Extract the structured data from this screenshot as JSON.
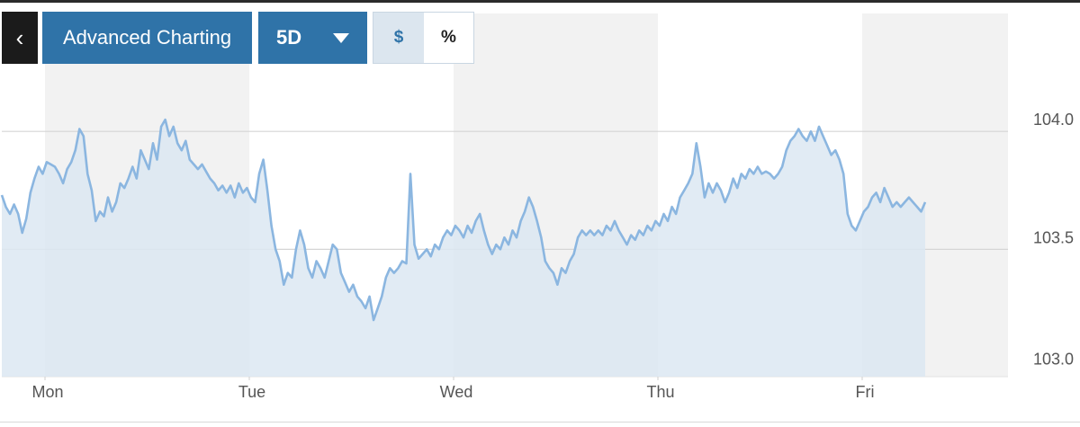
{
  "toolbar": {
    "back_glyph": "‹",
    "chart_label": "Advanced Charting",
    "range_label": "5D",
    "currency_label": "$",
    "percent_label": "%"
  },
  "icons": {
    "back": "chevron-left-icon",
    "range_dropdown": "caret-down-icon"
  },
  "colors": {
    "accent": "#2f73a8",
    "line": "#8bb6e0",
    "area": "#dce8f2",
    "band": "#f2f2f2",
    "dark_button": "#1b1b1b"
  },
  "chart_data": {
    "type": "area",
    "title": "",
    "xlabel": "",
    "ylabel": "",
    "ylim": [
      102.96,
      104.5
    ],
    "y_ticks": [
      {
        "value": 104.0,
        "label": "104.0"
      },
      {
        "value": 103.5,
        "label": "103.5"
      },
      {
        "value": 103.0,
        "label": "103.0"
      }
    ],
    "x_ticks": [
      "Mon",
      "Tue",
      "Wed",
      "Thu",
      "Fri"
    ],
    "x_range": [
      0,
      4.8
    ],
    "shaded_days": [
      0,
      2,
      4
    ],
    "grid": {
      "horizontal": true,
      "vertical": false
    },
    "series": [
      {
        "points": [
          [
            0.0,
            103.73
          ],
          [
            0.02,
            103.68
          ],
          [
            0.04,
            103.65
          ],
          [
            0.06,
            103.69
          ],
          [
            0.08,
            103.65
          ],
          [
            0.1,
            103.57
          ],
          [
            0.12,
            103.63
          ],
          [
            0.14,
            103.74
          ],
          [
            0.16,
            103.8
          ],
          [
            0.18,
            103.85
          ],
          [
            0.2,
            103.82
          ],
          [
            0.22,
            103.87
          ],
          [
            0.24,
            103.86
          ],
          [
            0.26,
            103.85
          ],
          [
            0.28,
            103.82
          ],
          [
            0.3,
            103.78
          ],
          [
            0.32,
            103.84
          ],
          [
            0.34,
            103.87
          ],
          [
            0.36,
            103.92
          ],
          [
            0.38,
            104.01
          ],
          [
            0.4,
            103.98
          ],
          [
            0.42,
            103.82
          ],
          [
            0.44,
            103.75
          ],
          [
            0.46,
            103.62
          ],
          [
            0.48,
            103.66
          ],
          [
            0.5,
            103.64
          ],
          [
            0.52,
            103.72
          ],
          [
            0.54,
            103.66
          ],
          [
            0.56,
            103.7
          ],
          [
            0.58,
            103.78
          ],
          [
            0.6,
            103.76
          ],
          [
            0.62,
            103.8
          ],
          [
            0.64,
            103.85
          ],
          [
            0.66,
            103.8
          ],
          [
            0.68,
            103.92
          ],
          [
            0.7,
            103.88
          ],
          [
            0.72,
            103.84
          ],
          [
            0.74,
            103.95
          ],
          [
            0.76,
            103.88
          ],
          [
            0.78,
            104.02
          ],
          [
            0.8,
            104.05
          ],
          [
            0.82,
            103.98
          ],
          [
            0.84,
            104.02
          ],
          [
            0.86,
            103.95
          ],
          [
            0.88,
            103.92
          ],
          [
            0.9,
            103.96
          ],
          [
            0.92,
            103.88
          ],
          [
            0.94,
            103.86
          ],
          [
            0.96,
            103.84
          ],
          [
            0.98,
            103.86
          ],
          [
            1.0,
            103.83
          ],
          [
            1.02,
            103.8
          ],
          [
            1.04,
            103.78
          ],
          [
            1.06,
            103.75
          ],
          [
            1.08,
            103.77
          ],
          [
            1.1,
            103.74
          ],
          [
            1.12,
            103.77
          ],
          [
            1.14,
            103.72
          ],
          [
            1.16,
            103.78
          ],
          [
            1.18,
            103.74
          ],
          [
            1.2,
            103.76
          ],
          [
            1.22,
            103.72
          ],
          [
            1.24,
            103.7
          ],
          [
            1.26,
            103.82
          ],
          [
            1.28,
            103.88
          ],
          [
            1.3,
            103.75
          ],
          [
            1.32,
            103.6
          ],
          [
            1.34,
            103.5
          ],
          [
            1.36,
            103.45
          ],
          [
            1.38,
            103.35
          ],
          [
            1.4,
            103.4
          ],
          [
            1.42,
            103.38
          ],
          [
            1.44,
            103.5
          ],
          [
            1.46,
            103.58
          ],
          [
            1.48,
            103.52
          ],
          [
            1.5,
            103.42
          ],
          [
            1.52,
            103.38
          ],
          [
            1.54,
            103.45
          ],
          [
            1.56,
            103.42
          ],
          [
            1.58,
            103.38
          ],
          [
            1.6,
            103.45
          ],
          [
            1.62,
            103.52
          ],
          [
            1.64,
            103.5
          ],
          [
            1.66,
            103.4
          ],
          [
            1.68,
            103.36
          ],
          [
            1.7,
            103.32
          ],
          [
            1.72,
            103.35
          ],
          [
            1.74,
            103.3
          ],
          [
            1.76,
            103.28
          ],
          [
            1.78,
            103.25
          ],
          [
            1.8,
            103.3
          ],
          [
            1.82,
            103.2
          ],
          [
            1.84,
            103.25
          ],
          [
            1.86,
            103.3
          ],
          [
            1.88,
            103.38
          ],
          [
            1.9,
            103.42
          ],
          [
            1.92,
            103.4
          ],
          [
            1.94,
            103.42
          ],
          [
            1.96,
            103.45
          ],
          [
            1.98,
            103.44
          ],
          [
            2.0,
            103.82
          ],
          [
            2.02,
            103.52
          ],
          [
            2.04,
            103.46
          ],
          [
            2.06,
            103.48
          ],
          [
            2.08,
            103.5
          ],
          [
            2.1,
            103.47
          ],
          [
            2.12,
            103.52
          ],
          [
            2.14,
            103.5
          ],
          [
            2.16,
            103.55
          ],
          [
            2.18,
            103.58
          ],
          [
            2.2,
            103.56
          ],
          [
            2.22,
            103.6
          ],
          [
            2.24,
            103.58
          ],
          [
            2.26,
            103.55
          ],
          [
            2.28,
            103.6
          ],
          [
            2.3,
            103.57
          ],
          [
            2.32,
            103.62
          ],
          [
            2.34,
            103.65
          ],
          [
            2.36,
            103.58
          ],
          [
            2.38,
            103.52
          ],
          [
            2.4,
            103.48
          ],
          [
            2.42,
            103.52
          ],
          [
            2.44,
            103.5
          ],
          [
            2.46,
            103.55
          ],
          [
            2.48,
            103.52
          ],
          [
            2.5,
            103.58
          ],
          [
            2.52,
            103.55
          ],
          [
            2.54,
            103.62
          ],
          [
            2.56,
            103.66
          ],
          [
            2.58,
            103.72
          ],
          [
            2.6,
            103.68
          ],
          [
            2.62,
            103.62
          ],
          [
            2.64,
            103.55
          ],
          [
            2.66,
            103.45
          ],
          [
            2.68,
            103.42
          ],
          [
            2.7,
            103.4
          ],
          [
            2.72,
            103.35
          ],
          [
            2.74,
            103.42
          ],
          [
            2.76,
            103.4
          ],
          [
            2.78,
            103.45
          ],
          [
            2.8,
            103.48
          ],
          [
            2.82,
            103.55
          ],
          [
            2.84,
            103.58
          ],
          [
            2.86,
            103.56
          ],
          [
            2.88,
            103.58
          ],
          [
            2.9,
            103.56
          ],
          [
            2.92,
            103.58
          ],
          [
            2.94,
            103.56
          ],
          [
            2.96,
            103.6
          ],
          [
            2.98,
            103.58
          ],
          [
            3.0,
            103.62
          ],
          [
            3.02,
            103.58
          ],
          [
            3.04,
            103.55
          ],
          [
            3.06,
            103.52
          ],
          [
            3.08,
            103.56
          ],
          [
            3.1,
            103.54
          ],
          [
            3.12,
            103.58
          ],
          [
            3.14,
            103.56
          ],
          [
            3.16,
            103.6
          ],
          [
            3.18,
            103.58
          ],
          [
            3.2,
            103.62
          ],
          [
            3.22,
            103.6
          ],
          [
            3.24,
            103.65
          ],
          [
            3.26,
            103.62
          ],
          [
            3.28,
            103.68
          ],
          [
            3.3,
            103.65
          ],
          [
            3.32,
            103.72
          ],
          [
            3.34,
            103.75
          ],
          [
            3.36,
            103.78
          ],
          [
            3.38,
            103.82
          ],
          [
            3.4,
            103.95
          ],
          [
            3.42,
            103.85
          ],
          [
            3.44,
            103.72
          ],
          [
            3.46,
            103.78
          ],
          [
            3.48,
            103.74
          ],
          [
            3.5,
            103.78
          ],
          [
            3.52,
            103.75
          ],
          [
            3.54,
            103.7
          ],
          [
            3.56,
            103.74
          ],
          [
            3.58,
            103.8
          ],
          [
            3.6,
            103.76
          ],
          [
            3.62,
            103.82
          ],
          [
            3.64,
            103.8
          ],
          [
            3.66,
            103.84
          ],
          [
            3.68,
            103.82
          ],
          [
            3.7,
            103.85
          ],
          [
            3.72,
            103.82
          ],
          [
            3.74,
            103.83
          ],
          [
            3.76,
            103.82
          ],
          [
            3.78,
            103.8
          ],
          [
            3.8,
            103.82
          ],
          [
            3.82,
            103.85
          ],
          [
            3.84,
            103.92
          ],
          [
            3.86,
            103.96
          ],
          [
            3.88,
            103.98
          ],
          [
            3.9,
            104.01
          ],
          [
            3.92,
            103.98
          ],
          [
            3.94,
            103.96
          ],
          [
            3.96,
            104.0
          ],
          [
            3.98,
            103.96
          ],
          [
            4.0,
            104.02
          ],
          [
            4.02,
            103.98
          ],
          [
            4.04,
            103.94
          ],
          [
            4.06,
            103.9
          ],
          [
            4.08,
            103.92
          ],
          [
            4.1,
            103.88
          ],
          [
            4.12,
            103.82
          ],
          [
            4.14,
            103.65
          ],
          [
            4.16,
            103.6
          ],
          [
            4.18,
            103.58
          ],
          [
            4.2,
            103.62
          ],
          [
            4.22,
            103.66
          ],
          [
            4.24,
            103.68
          ],
          [
            4.26,
            103.72
          ],
          [
            4.28,
            103.74
          ],
          [
            4.3,
            103.7
          ],
          [
            4.32,
            103.76
          ],
          [
            4.34,
            103.72
          ],
          [
            4.36,
            103.68
          ],
          [
            4.38,
            103.7
          ],
          [
            4.4,
            103.68
          ],
          [
            4.42,
            103.7
          ],
          [
            4.44,
            103.72
          ],
          [
            4.46,
            103.7
          ],
          [
            4.48,
            103.68
          ],
          [
            4.5,
            103.66
          ],
          [
            4.52,
            103.7
          ]
        ]
      }
    ]
  }
}
